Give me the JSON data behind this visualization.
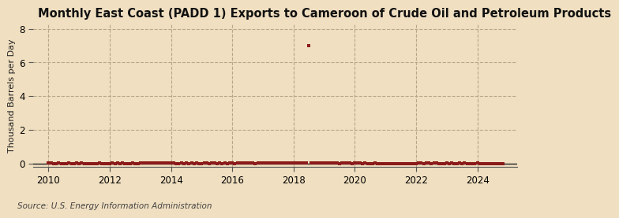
{
  "title": "Monthly East Coast (PADD 1) Exports to Cameroon of Crude Oil and Petroleum Products",
  "ylabel": "Thousand Barrels per Day",
  "source": "Source: U.S. Energy Information Administration",
  "background_color": "#f0dfc0",
  "plot_background_color": "#f0dfc0",
  "xlim": [
    2009.5,
    2025.3
  ],
  "ylim": [
    -0.2,
    8.3
  ],
  "yticks": [
    0,
    2,
    4,
    6,
    8
  ],
  "xticks": [
    2010,
    2012,
    2014,
    2016,
    2018,
    2020,
    2022,
    2024
  ],
  "dot_color": "#8b1a1a",
  "line_color": "#222222",
  "grid_color": "#b8a88a",
  "title_fontsize": 10.5,
  "label_fontsize": 8,
  "tick_fontsize": 8.5,
  "source_fontsize": 7.5,
  "data_points": [
    [
      2010.0,
      0.04
    ],
    [
      2010.083,
      0.04
    ],
    [
      2010.167,
      0
    ],
    [
      2010.25,
      0
    ],
    [
      2010.333,
      0.04
    ],
    [
      2010.417,
      0
    ],
    [
      2010.5,
      0
    ],
    [
      2010.583,
      0
    ],
    [
      2010.667,
      0.04
    ],
    [
      2010.75,
      0
    ],
    [
      2010.833,
      0
    ],
    [
      2010.917,
      0.04
    ],
    [
      2011.0,
      0
    ],
    [
      2011.083,
      0.04
    ],
    [
      2011.167,
      0
    ],
    [
      2011.25,
      0
    ],
    [
      2011.333,
      0
    ],
    [
      2011.417,
      0
    ],
    [
      2011.5,
      0
    ],
    [
      2011.583,
      0
    ],
    [
      2011.667,
      0.04
    ],
    [
      2011.75,
      0
    ],
    [
      2011.833,
      0
    ],
    [
      2011.917,
      0
    ],
    [
      2012.0,
      0
    ],
    [
      2012.083,
      0.04
    ],
    [
      2012.167,
      0
    ],
    [
      2012.25,
      0.04
    ],
    [
      2012.333,
      0
    ],
    [
      2012.417,
      0.04
    ],
    [
      2012.5,
      0
    ],
    [
      2012.583,
      0
    ],
    [
      2012.667,
      0
    ],
    [
      2012.75,
      0.04
    ],
    [
      2012.833,
      0
    ],
    [
      2012.917,
      0
    ],
    [
      2013.0,
      0.04
    ],
    [
      2013.083,
      0.04
    ],
    [
      2013.167,
      0.04
    ],
    [
      2013.25,
      0.04
    ],
    [
      2013.333,
      0.04
    ],
    [
      2013.417,
      0.04
    ],
    [
      2013.5,
      0.04
    ],
    [
      2013.583,
      0.04
    ],
    [
      2013.667,
      0.04
    ],
    [
      2013.75,
      0.04
    ],
    [
      2013.833,
      0.04
    ],
    [
      2013.917,
      0.04
    ],
    [
      2014.0,
      0.04
    ],
    [
      2014.083,
      0.04
    ],
    [
      2014.167,
      0
    ],
    [
      2014.25,
      0
    ],
    [
      2014.333,
      0.04
    ],
    [
      2014.417,
      0
    ],
    [
      2014.5,
      0.04
    ],
    [
      2014.583,
      0
    ],
    [
      2014.667,
      0.04
    ],
    [
      2014.75,
      0
    ],
    [
      2014.833,
      0.04
    ],
    [
      2014.917,
      0
    ],
    [
      2015.0,
      0
    ],
    [
      2015.083,
      0.04
    ],
    [
      2015.167,
      0.04
    ],
    [
      2015.25,
      0
    ],
    [
      2015.333,
      0.04
    ],
    [
      2015.417,
      0.04
    ],
    [
      2015.5,
      0
    ],
    [
      2015.583,
      0.04
    ],
    [
      2015.667,
      0
    ],
    [
      2015.75,
      0.04
    ],
    [
      2015.833,
      0
    ],
    [
      2015.917,
      0.04
    ],
    [
      2016.0,
      0.04
    ],
    [
      2016.083,
      0
    ],
    [
      2016.167,
      0.04
    ],
    [
      2016.25,
      0.04
    ],
    [
      2016.333,
      0.04
    ],
    [
      2016.417,
      0.04
    ],
    [
      2016.5,
      0.04
    ],
    [
      2016.583,
      0.04
    ],
    [
      2016.667,
      0.04
    ],
    [
      2016.75,
      0
    ],
    [
      2016.833,
      0.04
    ],
    [
      2016.917,
      0.04
    ],
    [
      2017.0,
      0.04
    ],
    [
      2017.083,
      0.04
    ],
    [
      2017.167,
      0.04
    ],
    [
      2017.25,
      0.04
    ],
    [
      2017.333,
      0.04
    ],
    [
      2017.417,
      0.04
    ],
    [
      2017.5,
      0.04
    ],
    [
      2017.583,
      0.04
    ],
    [
      2017.667,
      0.04
    ],
    [
      2017.75,
      0.04
    ],
    [
      2017.833,
      0.04
    ],
    [
      2017.917,
      0.04
    ],
    [
      2018.0,
      0.04
    ],
    [
      2018.083,
      0.04
    ],
    [
      2018.167,
      0.04
    ],
    [
      2018.25,
      0.04
    ],
    [
      2018.333,
      0.04
    ],
    [
      2018.417,
      0.04
    ],
    [
      2018.5,
      7.0
    ],
    [
      2018.583,
      0.04
    ],
    [
      2018.667,
      0.04
    ],
    [
      2018.75,
      0.04
    ],
    [
      2018.833,
      0.04
    ],
    [
      2018.917,
      0.04
    ],
    [
      2019.0,
      0.04
    ],
    [
      2019.083,
      0.04
    ],
    [
      2019.167,
      0.04
    ],
    [
      2019.25,
      0.04
    ],
    [
      2019.333,
      0.04
    ],
    [
      2019.417,
      0.04
    ],
    [
      2019.5,
      0
    ],
    [
      2019.583,
      0.04
    ],
    [
      2019.667,
      0.04
    ],
    [
      2019.75,
      0.04
    ],
    [
      2019.833,
      0.04
    ],
    [
      2019.917,
      0
    ],
    [
      2020.0,
      0.04
    ],
    [
      2020.083,
      0.04
    ],
    [
      2020.167,
      0.04
    ],
    [
      2020.25,
      0
    ],
    [
      2020.333,
      0.04
    ],
    [
      2020.417,
      0
    ],
    [
      2020.5,
      0
    ],
    [
      2020.583,
      0
    ],
    [
      2020.667,
      0.04
    ],
    [
      2020.75,
      0
    ],
    [
      2020.833,
      0
    ],
    [
      2020.917,
      0
    ],
    [
      2021.0,
      0
    ],
    [
      2021.083,
      0
    ],
    [
      2021.167,
      0
    ],
    [
      2021.25,
      0
    ],
    [
      2021.333,
      0
    ],
    [
      2021.417,
      0
    ],
    [
      2021.5,
      0
    ],
    [
      2021.583,
      0
    ],
    [
      2021.667,
      0
    ],
    [
      2021.75,
      0
    ],
    [
      2021.833,
      0
    ],
    [
      2021.917,
      0
    ],
    [
      2022.0,
      0
    ],
    [
      2022.083,
      0.04
    ],
    [
      2022.167,
      0.04
    ],
    [
      2022.25,
      0
    ],
    [
      2022.333,
      0.04
    ],
    [
      2022.417,
      0.04
    ],
    [
      2022.5,
      0
    ],
    [
      2022.583,
      0.04
    ],
    [
      2022.667,
      0.04
    ],
    [
      2022.75,
      0
    ],
    [
      2022.833,
      0
    ],
    [
      2022.917,
      0
    ],
    [
      2023.0,
      0.04
    ],
    [
      2023.083,
      0
    ],
    [
      2023.167,
      0.04
    ],
    [
      2023.25,
      0
    ],
    [
      2023.333,
      0
    ],
    [
      2023.417,
      0.04
    ],
    [
      2023.5,
      0
    ],
    [
      2023.583,
      0.04
    ],
    [
      2023.667,
      0
    ],
    [
      2023.75,
      0
    ],
    [
      2023.833,
      0
    ],
    [
      2023.917,
      0
    ],
    [
      2024.0,
      0.04
    ],
    [
      2024.083,
      0
    ],
    [
      2024.167,
      0
    ],
    [
      2024.25,
      0
    ],
    [
      2024.333,
      0
    ],
    [
      2024.417,
      0
    ],
    [
      2024.5,
      0
    ],
    [
      2024.583,
      0
    ],
    [
      2024.667,
      0
    ],
    [
      2024.75,
      0
    ],
    [
      2024.833,
      0
    ]
  ]
}
